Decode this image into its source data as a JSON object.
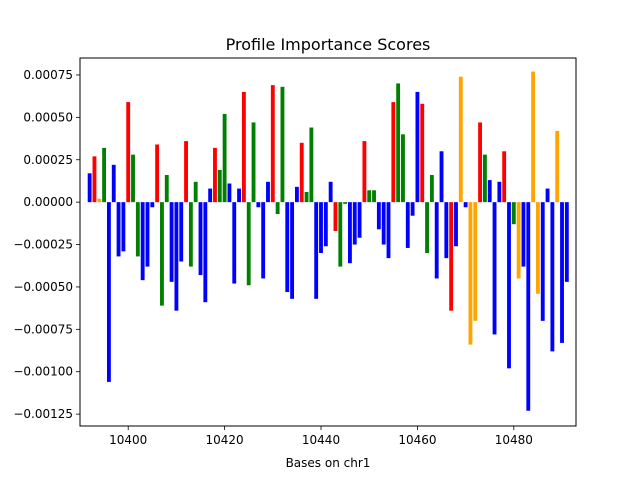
{
  "chart_data": {
    "type": "bar",
    "title": "Profile Importance Scores",
    "xlabel": "Bases on chr1",
    "ylabel": "",
    "xlim": [
      10390.0,
      10492.9
    ],
    "ylim": [
      -0.00132,
      0.00085
    ],
    "xticks": [
      10400,
      10420,
      10440,
      10460,
      10480
    ],
    "yticks": [
      -0.00125,
      -0.001,
      -0.00075,
      -0.0005,
      -0.00025,
      0.0,
      0.00025,
      0.0005,
      0.00075
    ],
    "ytick_labels": [
      "−0.00125",
      "−0.00100",
      "−0.00075",
      "−0.00050",
      "−0.00025",
      "0.00000",
      "0.00025",
      "0.00050",
      "0.00075"
    ],
    "xtick_labels": [
      "10400",
      "10420",
      "10440",
      "10460",
      "10480"
    ],
    "grid": false,
    "legend": "none",
    "bar_width": 0.8,
    "colors": {
      "A": "#008000",
      "C": "#0000ff",
      "G": "#ffa500",
      "T": "#ff0000"
    },
    "bars": [
      {
        "x": 10392,
        "y": 0.00017,
        "b": "C"
      },
      {
        "x": 10393,
        "y": 0.00027,
        "b": "T"
      },
      {
        "x": 10394,
        "y": 2e-05,
        "b": "G"
      },
      {
        "x": 10395,
        "y": 0.00032,
        "b": "A"
      },
      {
        "x": 10396,
        "y": -0.00106,
        "b": "C"
      },
      {
        "x": 10397,
        "y": 0.00022,
        "b": "C"
      },
      {
        "x": 10398,
        "y": -0.00032,
        "b": "C"
      },
      {
        "x": 10399,
        "y": -0.00029,
        "b": "C"
      },
      {
        "x": 10400,
        "y": 0.00059,
        "b": "T"
      },
      {
        "x": 10401,
        "y": 0.00028,
        "b": "A"
      },
      {
        "x": 10402,
        "y": -0.00032,
        "b": "A"
      },
      {
        "x": 10403,
        "y": -0.00046,
        "b": "C"
      },
      {
        "x": 10404,
        "y": -0.00038,
        "b": "C"
      },
      {
        "x": 10405,
        "y": -3e-05,
        "b": "C"
      },
      {
        "x": 10406,
        "y": 0.00034,
        "b": "T"
      },
      {
        "x": 10407,
        "y": -0.00061,
        "b": "A"
      },
      {
        "x": 10408,
        "y": 0.00016,
        "b": "A"
      },
      {
        "x": 10409,
        "y": -0.00047,
        "b": "C"
      },
      {
        "x": 10410,
        "y": -0.00064,
        "b": "C"
      },
      {
        "x": 10411,
        "y": -0.00035,
        "b": "C"
      },
      {
        "x": 10412,
        "y": 0.00036,
        "b": "T"
      },
      {
        "x": 10413,
        "y": -0.00038,
        "b": "A"
      },
      {
        "x": 10414,
        "y": 0.00012,
        "b": "A"
      },
      {
        "x": 10415,
        "y": -0.00043,
        "b": "C"
      },
      {
        "x": 10416,
        "y": -0.00059,
        "b": "C"
      },
      {
        "x": 10417,
        "y": 8e-05,
        "b": "C"
      },
      {
        "x": 10418,
        "y": 0.00032,
        "b": "T"
      },
      {
        "x": 10419,
        "y": 0.00019,
        "b": "A"
      },
      {
        "x": 10420,
        "y": 0.00052,
        "b": "A"
      },
      {
        "x": 10421,
        "y": 0.00011,
        "b": "C"
      },
      {
        "x": 10422,
        "y": -0.00048,
        "b": "C"
      },
      {
        "x": 10423,
        "y": 8e-05,
        "b": "C"
      },
      {
        "x": 10424,
        "y": 0.00065,
        "b": "T"
      },
      {
        "x": 10425,
        "y": -0.00049,
        "b": "A"
      },
      {
        "x": 10426,
        "y": 0.00047,
        "b": "A"
      },
      {
        "x": 10427,
        "y": -3e-05,
        "b": "C"
      },
      {
        "x": 10428,
        "y": -0.00045,
        "b": "C"
      },
      {
        "x": 10429,
        "y": 0.00012,
        "b": "C"
      },
      {
        "x": 10430,
        "y": 0.00069,
        "b": "T"
      },
      {
        "x": 10431,
        "y": -7e-05,
        "b": "A"
      },
      {
        "x": 10432,
        "y": 0.00068,
        "b": "A"
      },
      {
        "x": 10433,
        "y": -0.00053,
        "b": "C"
      },
      {
        "x": 10434,
        "y": -0.00057,
        "b": "C"
      },
      {
        "x": 10435,
        "y": 9e-05,
        "b": "C"
      },
      {
        "x": 10436,
        "y": 0.00035,
        "b": "T"
      },
      {
        "x": 10437,
        "y": 6e-05,
        "b": "A"
      },
      {
        "x": 10438,
        "y": 0.00044,
        "b": "A"
      },
      {
        "x": 10439,
        "y": -0.00057,
        "b": "C"
      },
      {
        "x": 10440,
        "y": -0.0003,
        "b": "C"
      },
      {
        "x": 10441,
        "y": -0.00026,
        "b": "C"
      },
      {
        "x": 10442,
        "y": 0.00012,
        "b": "C"
      },
      {
        "x": 10443,
        "y": -0.00017,
        "b": "T"
      },
      {
        "x": 10444,
        "y": -0.00038,
        "b": "A"
      },
      {
        "x": 10445,
        "y": -1e-05,
        "b": "A"
      },
      {
        "x": 10446,
        "y": -0.00036,
        "b": "C"
      },
      {
        "x": 10447,
        "y": -0.00025,
        "b": "C"
      },
      {
        "x": 10448,
        "y": -0.00021,
        "b": "C"
      },
      {
        "x": 10449,
        "y": 0.00036,
        "b": "T"
      },
      {
        "x": 10450,
        "y": 7e-05,
        "b": "A"
      },
      {
        "x": 10451,
        "y": 7e-05,
        "b": "A"
      },
      {
        "x": 10452,
        "y": -0.00016,
        "b": "C"
      },
      {
        "x": 10453,
        "y": -0.00025,
        "b": "C"
      },
      {
        "x": 10454,
        "y": -0.00033,
        "b": "C"
      },
      {
        "x": 10455,
        "y": 0.00059,
        "b": "T"
      },
      {
        "x": 10456,
        "y": 0.0007,
        "b": "A"
      },
      {
        "x": 10457,
        "y": 0.0004,
        "b": "A"
      },
      {
        "x": 10458,
        "y": -0.00027,
        "b": "C"
      },
      {
        "x": 10459,
        "y": -8e-05,
        "b": "C"
      },
      {
        "x": 10460,
        "y": 0.00065,
        "b": "C"
      },
      {
        "x": 10461,
        "y": 0.00058,
        "b": "T"
      },
      {
        "x": 10462,
        "y": -0.0003,
        "b": "A"
      },
      {
        "x": 10463,
        "y": 0.00016,
        "b": "A"
      },
      {
        "x": 10464,
        "y": -0.00045,
        "b": "C"
      },
      {
        "x": 10465,
        "y": 0.0003,
        "b": "C"
      },
      {
        "x": 10466,
        "y": -0.00033,
        "b": "C"
      },
      {
        "x": 10467,
        "y": -0.00064,
        "b": "T"
      },
      {
        "x": 10468,
        "y": -0.00026,
        "b": "C"
      },
      {
        "x": 10469,
        "y": 0.00074,
        "b": "G"
      },
      {
        "x": 10470,
        "y": -3e-05,
        "b": "C"
      },
      {
        "x": 10471,
        "y": -0.00084,
        "b": "G"
      },
      {
        "x": 10472,
        "y": -0.0007,
        "b": "G"
      },
      {
        "x": 10473,
        "y": 0.00047,
        "b": "T"
      },
      {
        "x": 10474,
        "y": 0.00028,
        "b": "A"
      },
      {
        "x": 10475,
        "y": 0.00013,
        "b": "C"
      },
      {
        "x": 10476,
        "y": -0.00078,
        "b": "C"
      },
      {
        "x": 10477,
        "y": 0.00012,
        "b": "C"
      },
      {
        "x": 10478,
        "y": 0.0003,
        "b": "T"
      },
      {
        "x": 10479,
        "y": -0.00098,
        "b": "C"
      },
      {
        "x": 10480,
        "y": -0.00013,
        "b": "A"
      },
      {
        "x": 10481,
        "y": -0.00045,
        "b": "G"
      },
      {
        "x": 10482,
        "y": -0.00038,
        "b": "C"
      },
      {
        "x": 10483,
        "y": -0.00123,
        "b": "C"
      },
      {
        "x": 10484,
        "y": 0.00077,
        "b": "G"
      },
      {
        "x": 10485,
        "y": -0.00054,
        "b": "G"
      },
      {
        "x": 10486,
        "y": -0.0007,
        "b": "C"
      },
      {
        "x": 10487,
        "y": 8e-05,
        "b": "C"
      },
      {
        "x": 10488,
        "y": -0.00088,
        "b": "C"
      },
      {
        "x": 10489,
        "y": 0.00042,
        "b": "G"
      },
      {
        "x": 10490,
        "y": -0.00083,
        "b": "C"
      },
      {
        "x": 10491,
        "y": -0.00047,
        "b": "C"
      }
    ]
  }
}
